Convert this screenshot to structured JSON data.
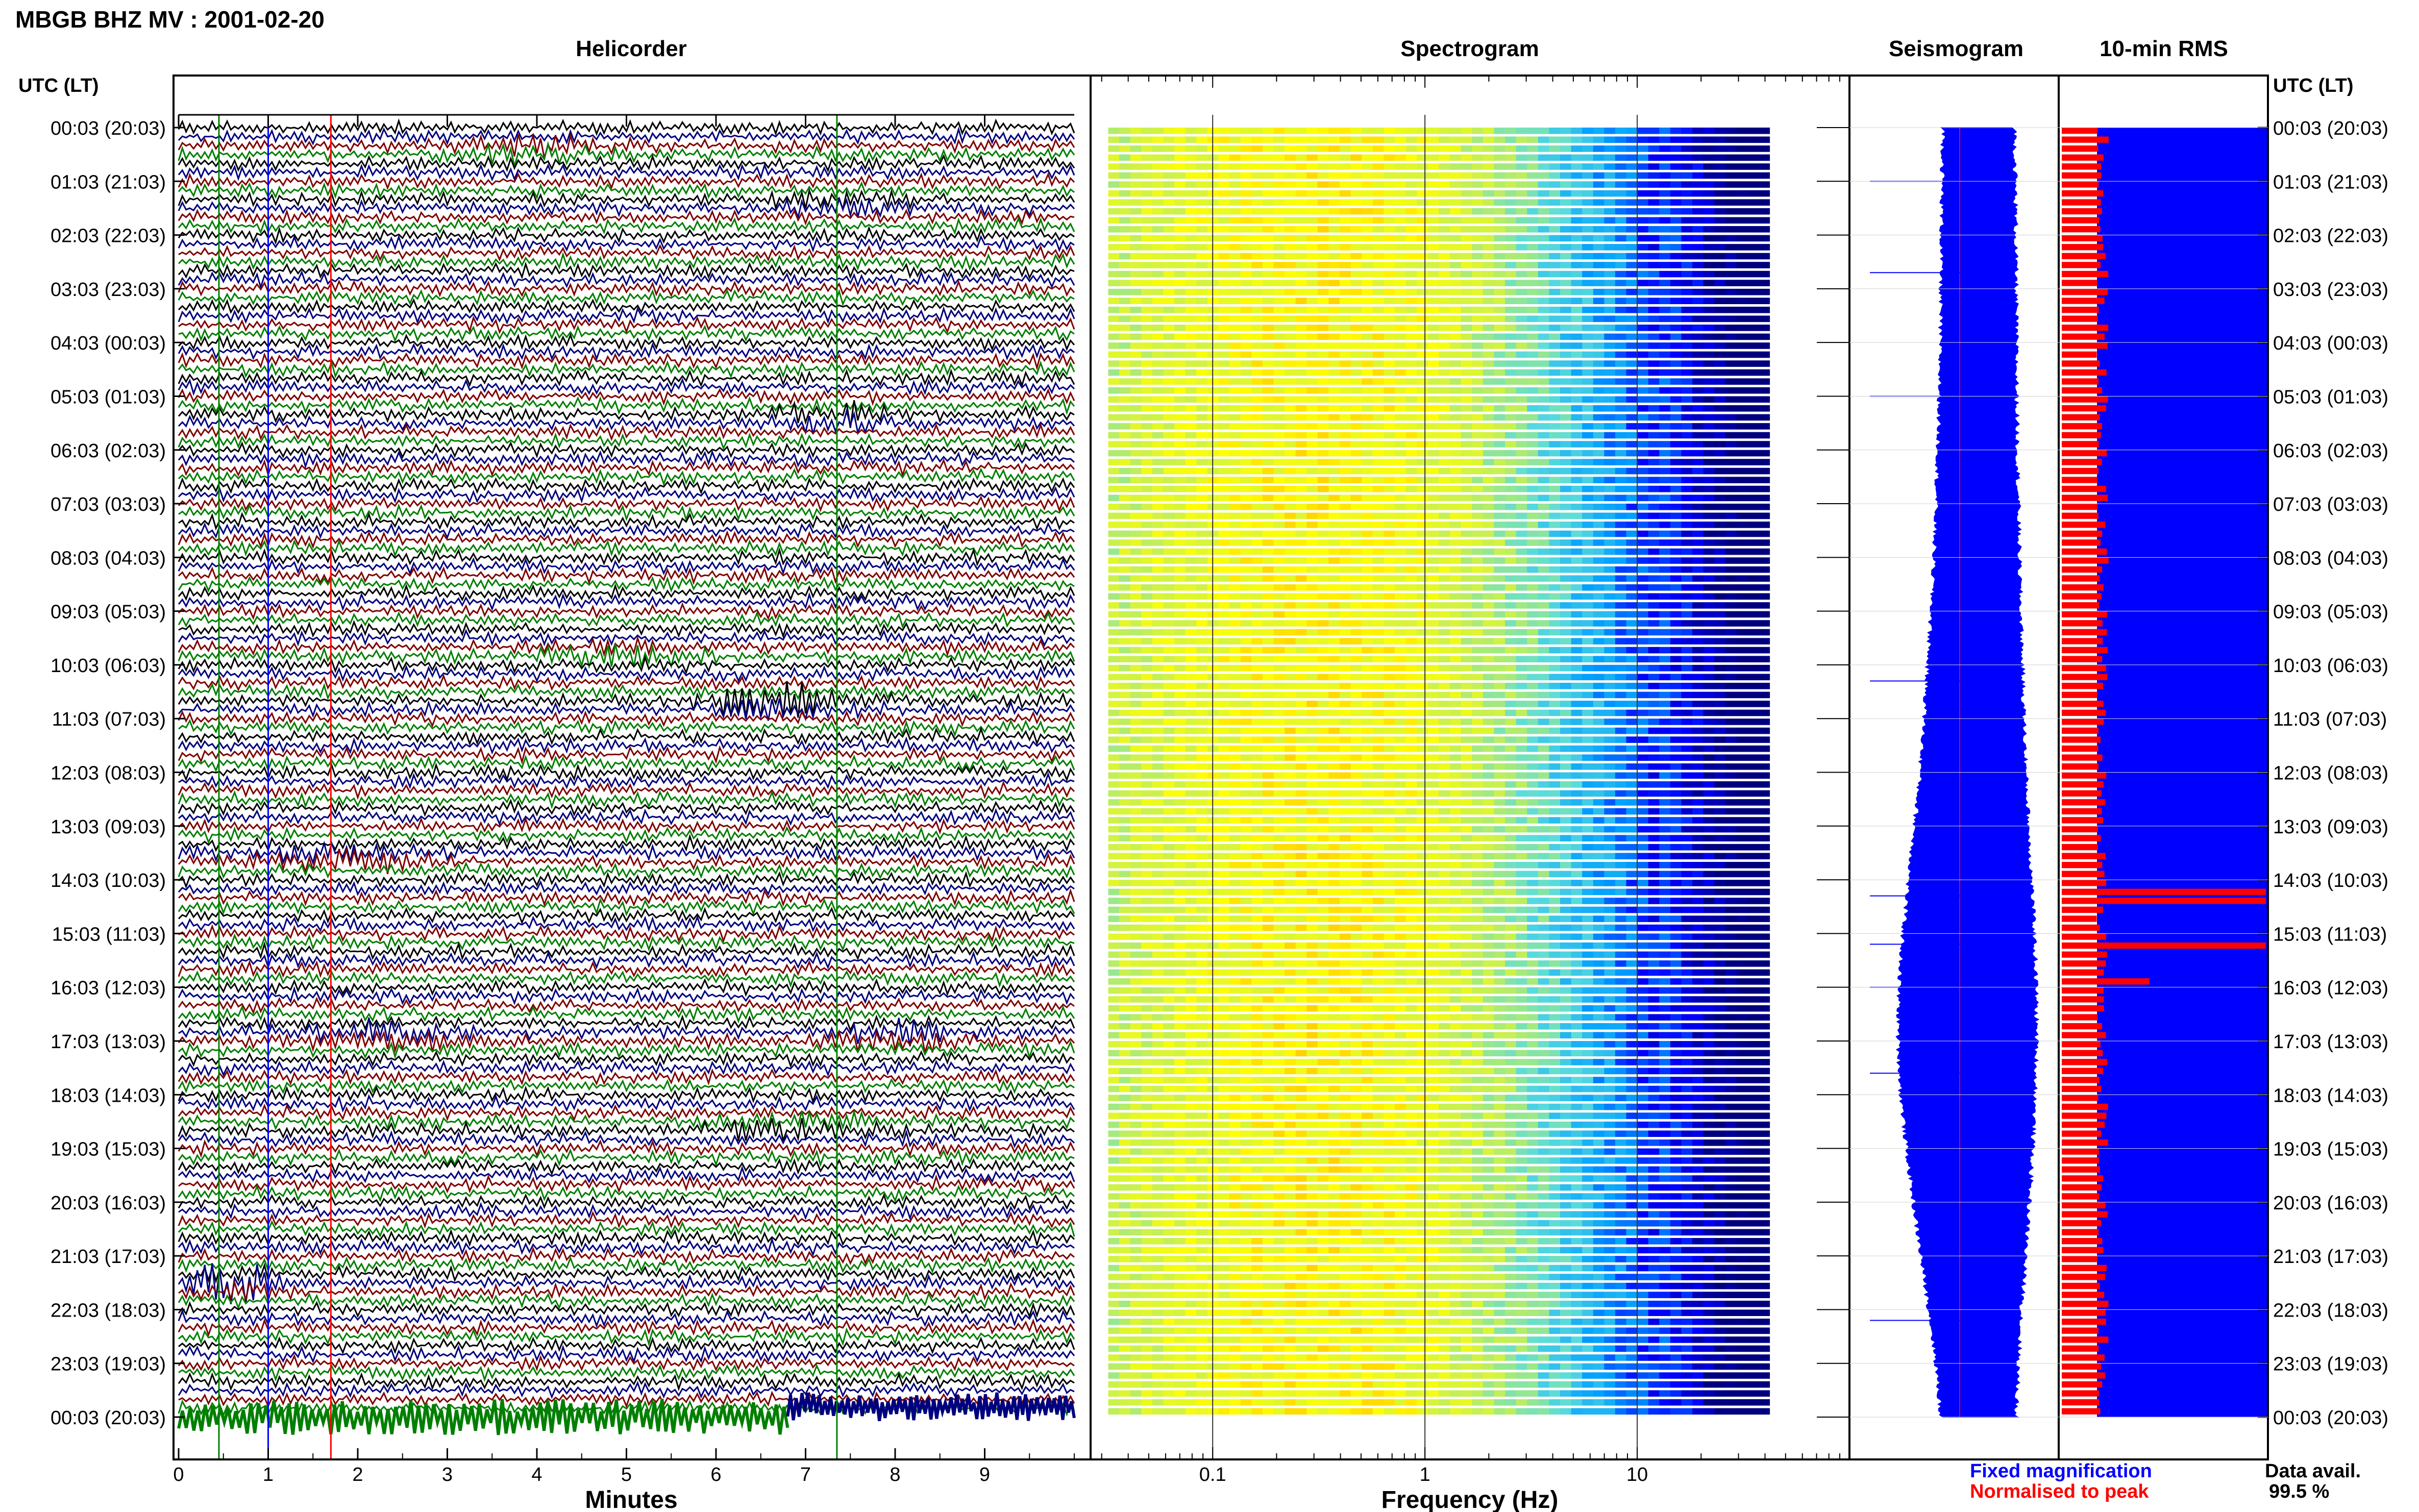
{
  "header": {
    "station_title": "MBGB BHZ MV : 2001-02-20",
    "utc_left_label": "UTC (LT)",
    "utc_right_label": "UTC (LT)"
  },
  "panels": {
    "helicorder_title": "Helicorder",
    "spectrogram_title": "Spectrogram",
    "seismogram_title": "Seismogram",
    "rms_title": "10-min RMS"
  },
  "legend": {
    "fixed_label": "Fixed magnification",
    "normalised_label": "Normalised to peak",
    "fixed_color": "#0000ff",
    "normalised_color": "#ff0000",
    "data_avail_label": "Data avail.",
    "data_avail_value": "99.5 %"
  },
  "colors": {
    "trace_cycle": [
      "#000000",
      "#0000ff",
      "#ff0000",
      "#008000"
    ],
    "trace_cycle_drawn": [
      "#000000",
      "#00007f",
      "#7f0000",
      "#007f00"
    ],
    "seismogram_fill": "#0000ff",
    "rms_normalised": "#ff0000",
    "rms_fixed": "#0000ff",
    "spectrogram_colormap": [
      "#00007f",
      "#0000ff",
      "#00bfff",
      "#7fffbf",
      "#ffff00",
      "#ff8000",
      "#ff0000"
    ]
  },
  "chart_data": {
    "type": "helicorder-spectrogram-panel",
    "time_labels": [
      "00:03 (20:03)",
      "01:03 (21:03)",
      "02:03 (22:03)",
      "03:03 (23:03)",
      "04:03 (00:03)",
      "05:03 (01:03)",
      "06:03 (02:03)",
      "07:03 (03:03)",
      "08:03 (04:03)",
      "09:03 (05:03)",
      "10:03 (06:03)",
      "11:03 (07:03)",
      "12:03 (08:03)",
      "13:03 (09:03)",
      "14:03 (10:03)",
      "15:03 (11:03)",
      "16:03 (12:03)",
      "17:03 (13:03)",
      "18:03 (14:03)",
      "19:03 (15:03)",
      "20:03 (16:03)",
      "21:03 (17:03)",
      "22:03 (18:03)",
      "23:03 (19:03)",
      "00:03 (20:03)"
    ],
    "helicorder": {
      "xlabel": "Minutes",
      "xticks": [
        "0",
        "1",
        "2",
        "3",
        "4",
        "5",
        "6",
        "7",
        "8",
        "9"
      ],
      "xlim": [
        0,
        10
      ],
      "rows": 144,
      "row_minutes": 10,
      "last_row_data_until_minute": 6.8,
      "marker_lines": [
        {
          "minute": 0.45,
          "color": "#008000"
        },
        {
          "minute": 1.0,
          "color": "#0000ff"
        },
        {
          "minute": 1.7,
          "color": "#ff0000"
        },
        {
          "minute": 7.35,
          "color": "#008000"
        }
      ],
      "events": [
        {
          "hour": 0.4,
          "minute": 4.0,
          "amp": 3.0,
          "width": 0.7
        },
        {
          "hour": 1.4,
          "minute": 7.4,
          "amp": 2.5,
          "width": 0.6
        },
        {
          "hour": 5.4,
          "minute": 7.3,
          "amp": 4.0,
          "width": 0.6
        },
        {
          "hour": 9.8,
          "minute": 5.0,
          "amp": 2.5,
          "width": 0.7
        },
        {
          "hour": 10.7,
          "minute": 6.6,
          "amp": 5.0,
          "width": 0.7
        },
        {
          "hour": 13.6,
          "minute": 1.8,
          "amp": 2.5,
          "width": 0.9
        },
        {
          "hour": 16.9,
          "minute": 2.2,
          "amp": 3.0,
          "width": 0.9
        },
        {
          "hour": 16.9,
          "minute": 8.0,
          "amp": 3.5,
          "width": 0.6
        },
        {
          "hour": 18.6,
          "minute": 6.8,
          "amp": 3.0,
          "width": 0.8
        },
        {
          "hour": 21.5,
          "minute": 0.6,
          "amp": 5.0,
          "width": 0.5
        }
      ]
    },
    "spectrogram": {
      "xlabel": "Frequency (Hz)",
      "xscale": "log",
      "xticks": [
        "0.1",
        "1",
        "10"
      ],
      "xlim": [
        0.0266,
        100
      ],
      "data_fmax": 42,
      "high_energy_band_hz": [
        0.2,
        0.5
      ]
    },
    "seismogram": {
      "note_profile": "Envelope of half-hourly peak amplitude; wider (larger) around 15:00-17:00 UTC",
      "half_width_by_hour": [
        0.34,
        0.36,
        0.37,
        0.38,
        0.39,
        0.4,
        0.42,
        0.45,
        0.48,
        0.52,
        0.57,
        0.62,
        0.68,
        0.76,
        0.85,
        0.93,
        0.99,
        1.0,
        0.96,
        0.88,
        0.78,
        0.67,
        0.55,
        0.45,
        0.38
      ],
      "normalised_line_position": 0.5
    },
    "rms": {
      "bins": 144,
      "normalised_value_default": 0.2,
      "fixed_value_default": 1.0,
      "spikes": [
        {
          "hour": 14.25,
          "value": 1.0
        },
        {
          "hour": 15.1,
          "value": 0.3
        },
        {
          "hour": 15.2,
          "value": 1.0
        },
        {
          "hour": 15.9,
          "value": 0.43
        }
      ]
    }
  }
}
